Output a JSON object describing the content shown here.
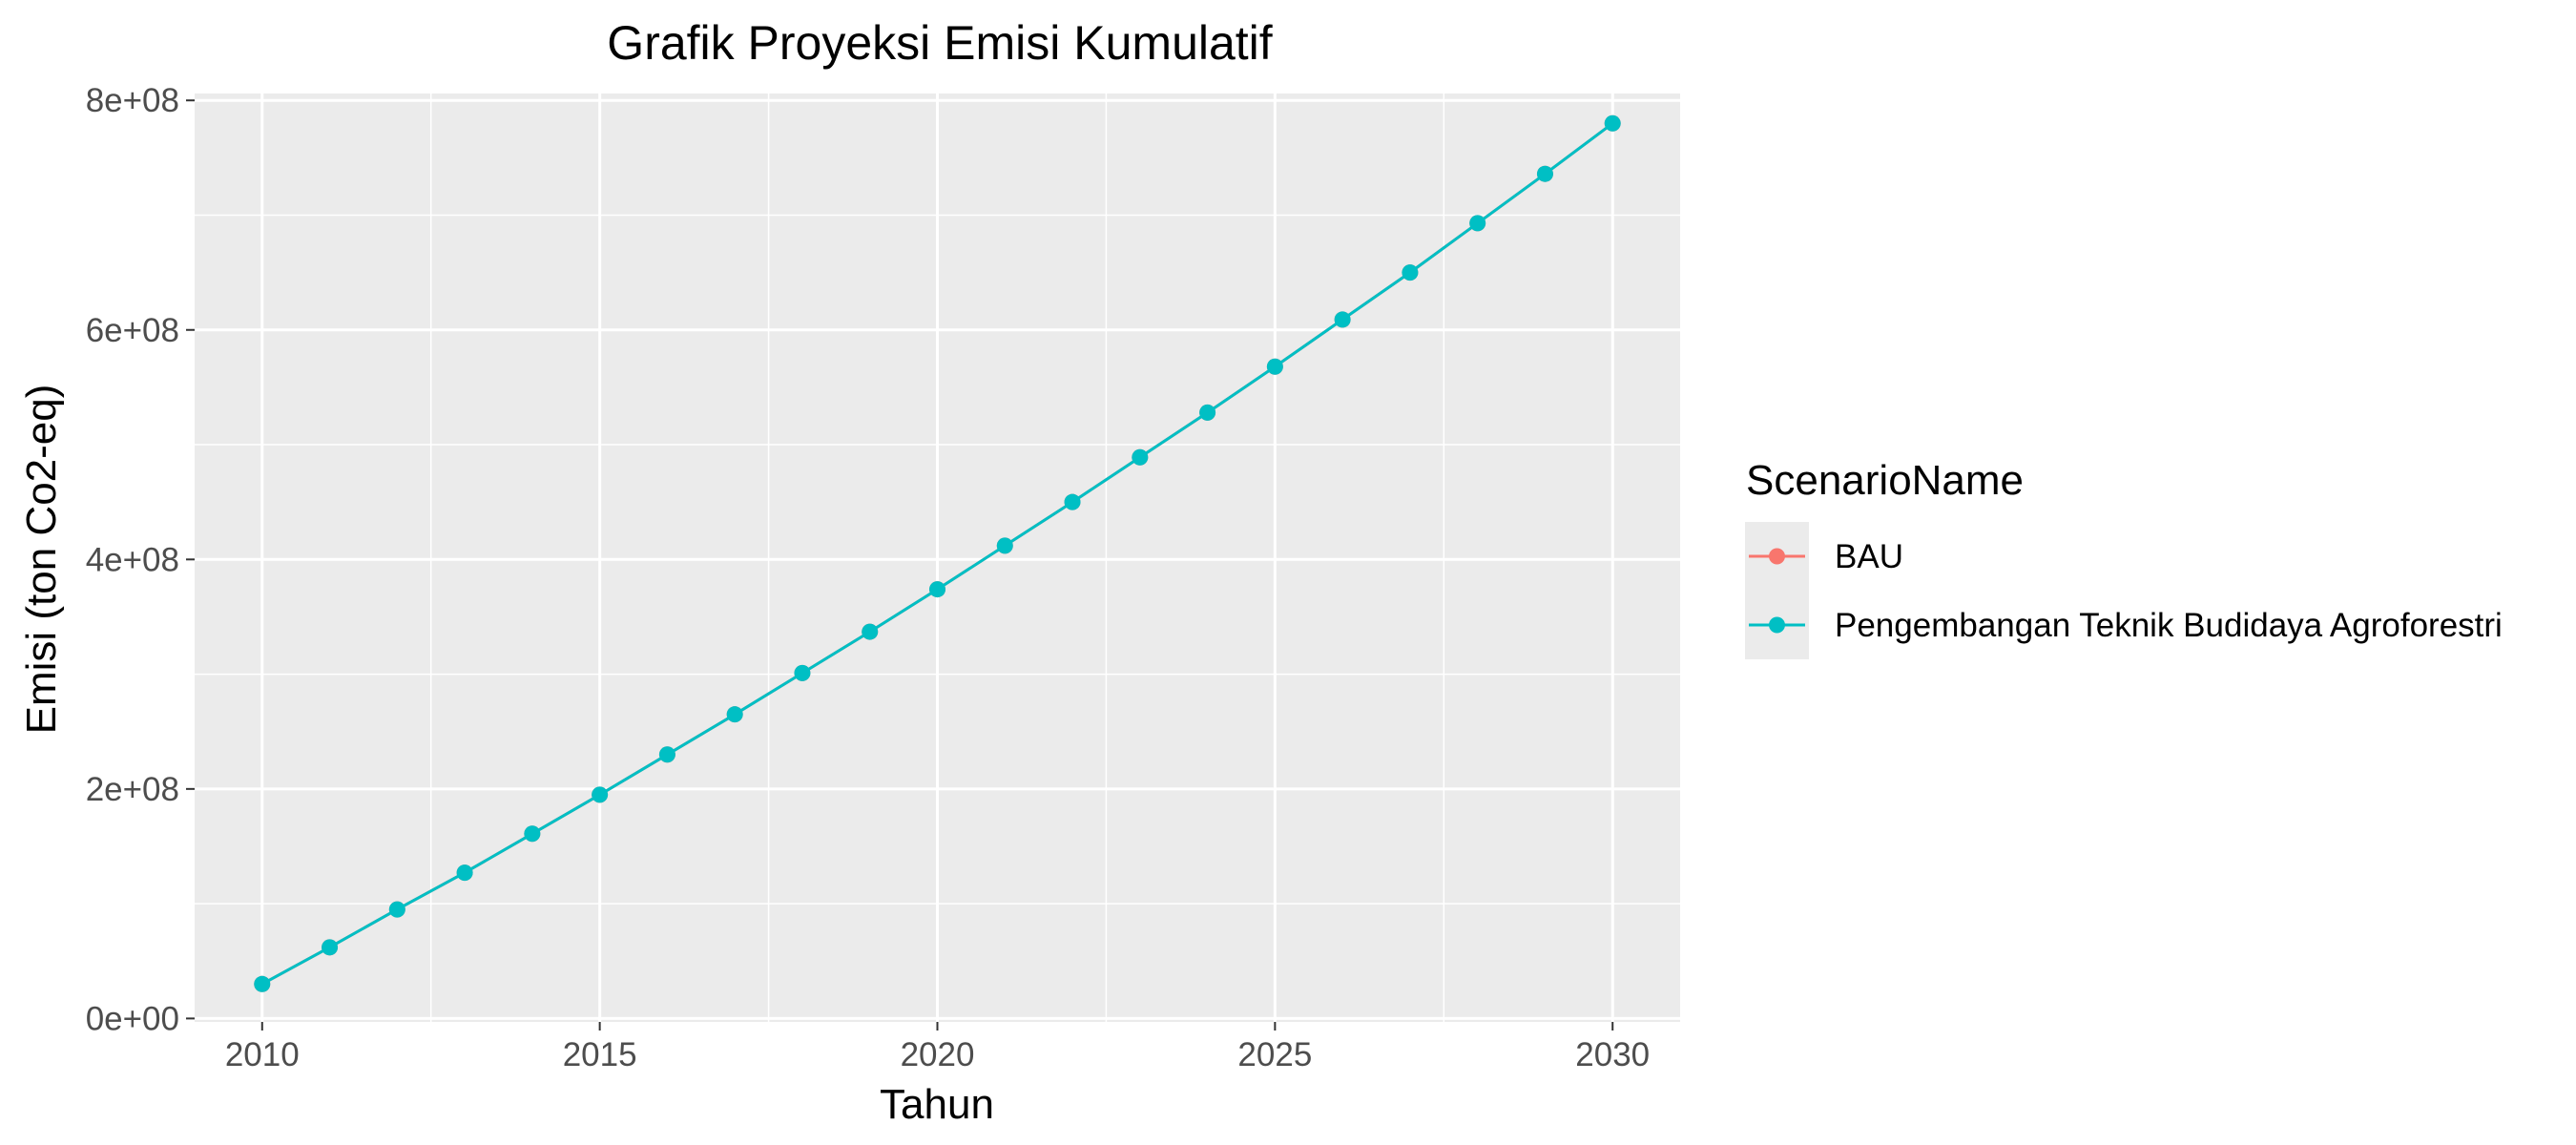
{
  "chart_data": {
    "type": "line",
    "title": "Grafik Proyeksi Emisi Kumulatif",
    "xlabel": "Tahun",
    "ylabel": "Emisi (ton Co2-eq)",
    "xlim": [
      2009,
      2031
    ],
    "ylim": [
      -3000000,
      806000000
    ],
    "x_ticks": [
      2010,
      2015,
      2020,
      2025,
      2030
    ],
    "x_tick_labels": [
      "2010",
      "2015",
      "2020",
      "2025",
      "2030"
    ],
    "y_ticks": [
      0,
      200000000,
      400000000,
      600000000,
      800000000
    ],
    "y_tick_labels": [
      "0e+00",
      "2e+08",
      "4e+08",
      "6e+08",
      "8e+08"
    ],
    "grid": true,
    "legend": {
      "title": "ScenarioName",
      "position": "right"
    },
    "x": [
      2010,
      2011,
      2012,
      2013,
      2014,
      2015,
      2016,
      2017,
      2018,
      2019,
      2020,
      2021,
      2022,
      2023,
      2024,
      2025,
      2026,
      2027,
      2028,
      2029,
      2030
    ],
    "series": [
      {
        "name": "BAU",
        "color": "#f8766d",
        "values": [
          30000000,
          62000000,
          95000000,
          127000000,
          161000000,
          195000000,
          230000000,
          265000000,
          301000000,
          337000000,
          374000000,
          412000000,
          450000000,
          489000000,
          528000000,
          568000000,
          609000000,
          650000000,
          693000000,
          736000000,
          780000000
        ]
      },
      {
        "name": "Pengembangan Teknik Budidaya Agroforestri",
        "color": "#00bfc4",
        "values": [
          30000000,
          62000000,
          95000000,
          127000000,
          161000000,
          195000000,
          230000000,
          265000000,
          301000000,
          337000000,
          374000000,
          412000000,
          450000000,
          489000000,
          528000000,
          568000000,
          609000000,
          650000000,
          693000000,
          736000000,
          780000000
        ]
      }
    ]
  }
}
